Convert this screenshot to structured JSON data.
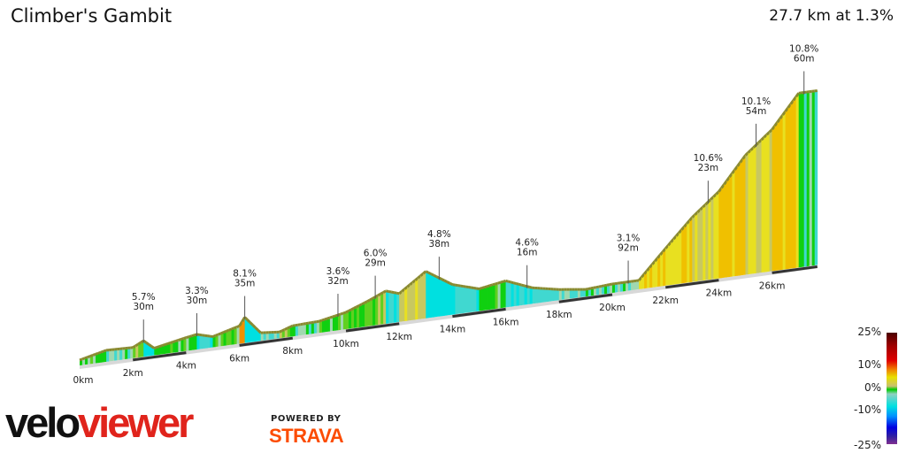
{
  "header": {
    "title": "Climber's Gambit",
    "summary": "27.7 km at 1.3%"
  },
  "chart_data": {
    "type": "area",
    "title": "Climber's Gambit",
    "total_distance_km": 27.7,
    "average_grade_pct": 1.3,
    "x_tick_labels": [
      "0km",
      "2km",
      "4km",
      "6km",
      "8km",
      "10km",
      "12km",
      "14km",
      "16km",
      "18km",
      "20km",
      "22km",
      "24km",
      "26km"
    ],
    "profile_relative_height": [
      [
        0,
        6
      ],
      [
        1,
        13
      ],
      [
        2,
        12
      ],
      [
        2.4,
        18
      ],
      [
        2.8,
        8
      ],
      [
        4,
        15
      ],
      [
        4.4,
        17
      ],
      [
        5,
        12
      ],
      [
        6,
        20
      ],
      [
        6.2,
        29
      ],
      [
        6.8,
        9
      ],
      [
        7.5,
        7
      ],
      [
        8,
        12
      ],
      [
        9,
        13
      ],
      [
        10,
        19
      ],
      [
        10.8,
        28
      ],
      [
        11.5,
        37
      ],
      [
        12,
        32
      ],
      [
        13,
        53
      ],
      [
        14,
        34
      ],
      [
        15,
        25
      ],
      [
        16,
        30
      ],
      [
        17,
        18
      ],
      [
        18,
        12
      ],
      [
        19,
        8
      ],
      [
        20,
        10
      ],
      [
        21,
        10
      ],
      [
        22,
        42
      ],
      [
        23,
        73
      ],
      [
        24,
        98
      ],
      [
        25,
        135
      ],
      [
        26,
        160
      ],
      [
        27,
        197
      ],
      [
        27.7,
        197
      ]
    ],
    "climbs": [
      {
        "km": 2.4,
        "grade": "5.7%",
        "gain": "30m"
      },
      {
        "km": 4.4,
        "grade": "3.3%",
        "gain": "30m"
      },
      {
        "km": 6.2,
        "grade": "8.1%",
        "gain": "35m"
      },
      {
        "km": 9.7,
        "grade": "3.6%",
        "gain": "32m"
      },
      {
        "km": 11.1,
        "grade": "6.0%",
        "gain": "29m"
      },
      {
        "km": 13.5,
        "grade": "4.8%",
        "gain": "38m"
      },
      {
        "km": 16.8,
        "grade": "4.6%",
        "gain": "16m"
      },
      {
        "km": 20.6,
        "grade": "3.1%",
        "gain": "92m"
      },
      {
        "km": 23.6,
        "grade": "10.6%",
        "gain": "23m"
      },
      {
        "km": 25.4,
        "grade": "10.1%",
        "gain": "54m"
      },
      {
        "km": 27.2,
        "grade": "10.8%",
        "gain": "60m"
      }
    ],
    "legend": {
      "ticks": [
        "25%",
        "10%",
        "0%",
        "-10%",
        "-25%"
      ],
      "range": [
        -25,
        25
      ]
    }
  },
  "branding": {
    "logo_left": "velo",
    "logo_right": "viewer",
    "powered_by": "POWERED BY",
    "strava": "STRAVA"
  }
}
